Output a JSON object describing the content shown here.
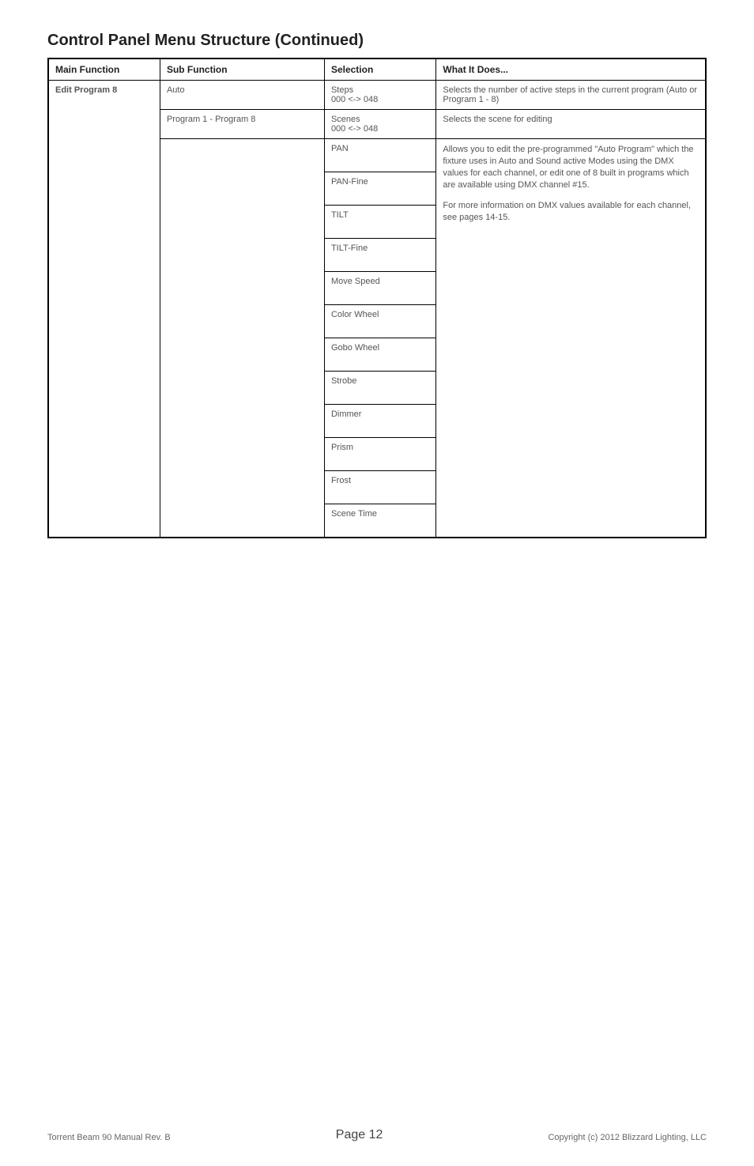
{
  "title": "Control Panel Menu Structure (Continued)",
  "headers": {
    "mainFunction": "Main Function",
    "subFunction": "Sub Function",
    "selection": "Selection",
    "whatItDoes": "What It Does..."
  },
  "rows": {
    "mainFunction": "Edit Program 8",
    "sub1": "Auto",
    "sel1": "Steps\n000 <-> 048",
    "desc1": "Selects the number of active steps in the current program (Auto or Program 1 - 8)",
    "sub2": "Program 1 - Program 8",
    "sel2": "Scenes\n000 <-> 048",
    "desc2": "Selects the scene for editing",
    "selections": [
      "PAN",
      "PAN-Fine",
      "TILT",
      "TILT-Fine",
      "Move Speed",
      "Color Wheel",
      "Gobo Wheel",
      "Strobe",
      "Dimmer",
      "Prism",
      "Frost",
      "Scene Time"
    ],
    "desc3a": "Allows you to edit the pre-programmed \"Auto Program\" which the fixture uses in Auto and Sound active Modes using the DMX values for each channel, or edit one of 8 built in programs which are available using DMX channel #15.",
    "desc3b": "For more information on DMX values available for each channel, see pages 14-15."
  },
  "footer": {
    "left": "Torrent Beam 90 Manual Rev. B",
    "center": "Page 12",
    "right": "Copyright (c) 2012 Blizzard Lighting, LLC"
  }
}
